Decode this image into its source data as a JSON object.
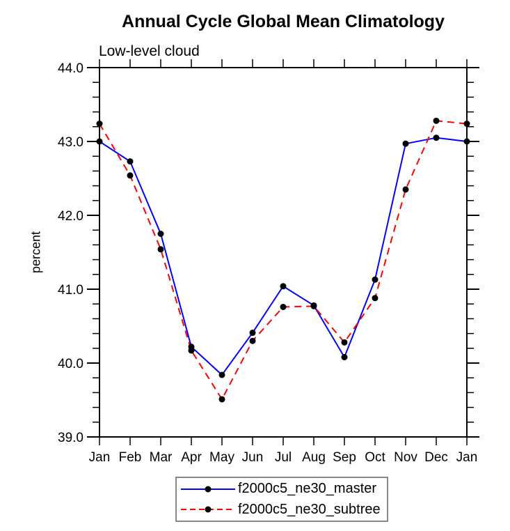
{
  "title": "Annual Cycle Global Mean Climatology",
  "subtitle": "Low-level cloud",
  "chart_data": {
    "type": "line",
    "title": "Annual Cycle Global Mean Climatology",
    "subtitle": "Low-level cloud",
    "xlabel": "",
    "ylabel": "percent",
    "categories": [
      "Jan",
      "Feb",
      "Mar",
      "Apr",
      "May",
      "Jun",
      "Jul",
      "Aug",
      "Sep",
      "Oct",
      "Nov",
      "Dec",
      "Jan"
    ],
    "ylim": [
      39.0,
      44.0
    ],
    "y_major_step": 1.0,
    "y_minor_step": 0.2,
    "y_tick_labels": [
      "39.0",
      "40.0",
      "41.0",
      "42.0",
      "43.0",
      "44.0"
    ],
    "grid": false,
    "legend_position": "bottom-center",
    "axis_color": "#000000",
    "series": [
      {
        "name": "f2000c5_ne30_master",
        "color": "#0000ff",
        "dash": "solid",
        "marker": "circle",
        "marker_color": "#000000",
        "values": [
          43.0,
          42.73,
          41.75,
          40.22,
          39.84,
          40.41,
          41.04,
          40.78,
          40.08,
          41.13,
          42.97,
          43.05,
          43.0
        ]
      },
      {
        "name": "f2000c5_ne30_subtree",
        "color": "#ff0000",
        "dash": "dashed",
        "marker": "circle",
        "marker_color": "#000000",
        "values": [
          43.24,
          42.54,
          41.54,
          40.17,
          39.51,
          40.3,
          40.76,
          40.77,
          40.28,
          40.88,
          42.35,
          43.28,
          43.24
        ]
      }
    ]
  }
}
